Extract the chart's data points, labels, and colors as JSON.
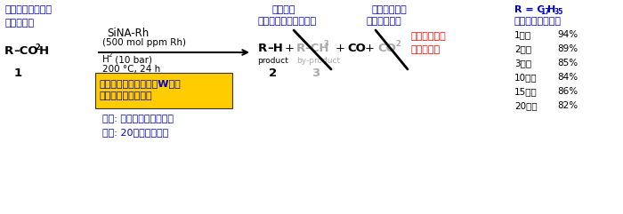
{
  "bg_color": "#ffffff",
  "blue": "#0000cc",
  "red": "#ff0000",
  "gray": "#aaaaaa",
  "black": "#000000",
  "yellow_box": "#ffcc00",
  "title_left_line1": "バイオマス由来の",
  "title_left_line2": "遅離脂芪酸",
  "catalyst": "SiNA-Rh",
  "catalyst2": "(500 mol ppm Rh)",
  "h2_label": "H",
  "h2_sub": "2",
  "h2_rest": " (10 bar)",
  "temp": "200 °C, 24 h",
  "microwave_line1": "マイクロ波照射　４０W程度",
  "microwave_line2": "（省エネルギー化）",
  "water_note1": "水素: 再生可能エネルギー",
  "water_note2": "触媒: 20回再利用可能",
  "title_2nd_gen_line1": "第二世代",
  "title_2nd_gen_line2": "バイオディーゼル燃料",
  "title_co_line1": "一酸化炭素は",
  "title_co_line2": "石油合成原料",
  "no_co2_line1": "二酸化炭素は",
  "no_co2_line2": "生成しない",
  "r_note": "（ステアリン酸）",
  "recycling_data": [
    {
      "label": "1回目",
      "value": "94%"
    },
    {
      "label": "2回目",
      "value": "89%"
    },
    {
      "label": "3回目",
      "value": "85%"
    },
    {
      "label": "10回目",
      "value": "84%"
    },
    {
      "label": "15回目",
      "value": "86%"
    },
    {
      "label": "20回目",
      "value": "82%"
    }
  ]
}
